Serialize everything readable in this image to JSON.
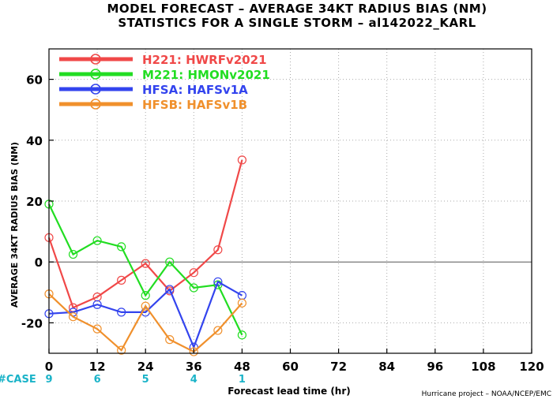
{
  "chart_data": {
    "type": "line",
    "title": "MODEL FORECAST – AVERAGE 34KT RADIUS BIAS (NM)",
    "subtitle": "STATISTICS FOR A SINGLE STORM – al142022_KARL",
    "xlabel": "Forecast lead time (hr)",
    "ylabel": "AVERAGE 34KT RADIUS BIAS (NM)",
    "credit": "Hurricane project – NOAA/NCEP/EMC",
    "xlim": [
      0,
      120
    ],
    "ylim": [
      -30,
      70
    ],
    "x_ticks": [
      "0",
      "12",
      "24",
      "36",
      "48",
      "60",
      "72",
      "84",
      "96",
      "108",
      "120"
    ],
    "x_tick_values": [
      0,
      12,
      24,
      36,
      48,
      60,
      72,
      84,
      96,
      108,
      120
    ],
    "y_ticks": [
      "-20",
      "0",
      "20",
      "40",
      "60"
    ],
    "y_tick_values": [
      -20,
      0,
      20,
      40,
      60
    ],
    "grid": true,
    "legend_position": "top-left",
    "case_label": "#CASE",
    "case_counts": [
      {
        "x": 0,
        "label": "9"
      },
      {
        "x": 12,
        "label": "6"
      },
      {
        "x": 24,
        "label": "5"
      },
      {
        "x": 36,
        "label": "4"
      },
      {
        "x": 48,
        "label": "1"
      }
    ],
    "series": [
      {
        "name": "H221:  HWRFv2021",
        "color": "#f04848",
        "x": [
          0,
          6,
          12,
          18,
          24,
          30,
          36,
          42,
          48
        ],
        "y": [
          8,
          -15,
          -11.5,
          -6,
          -0.5,
          -9.5,
          -3.5,
          4,
          33.5
        ]
      },
      {
        "name": "M221:  HMONv2021",
        "color": "#22dd22",
        "x": [
          0,
          6,
          12,
          18,
          24,
          30,
          36,
          42,
          48
        ],
        "y": [
          19,
          2.5,
          7,
          5,
          -11,
          0,
          -8.5,
          -7.5,
          -24
        ]
      },
      {
        "name": "HFSA:  HAFSv1A",
        "color": "#3344ee",
        "x": [
          0,
          6,
          12,
          18,
          24,
          30,
          36,
          42,
          48
        ],
        "y": [
          -17,
          -16.5,
          -14,
          -16.5,
          -16.5,
          -9,
          -28,
          -6.5,
          -11
        ]
      },
      {
        "name": "HFSB:  HAFSv1B",
        "color": "#f0902c",
        "x": [
          0,
          6,
          12,
          18,
          24,
          30,
          36,
          42,
          48
        ],
        "y": [
          -10.5,
          -18,
          -22,
          -29,
          -14.5,
          -25.5,
          -29.5,
          -22.5,
          -13.5
        ]
      }
    ]
  }
}
